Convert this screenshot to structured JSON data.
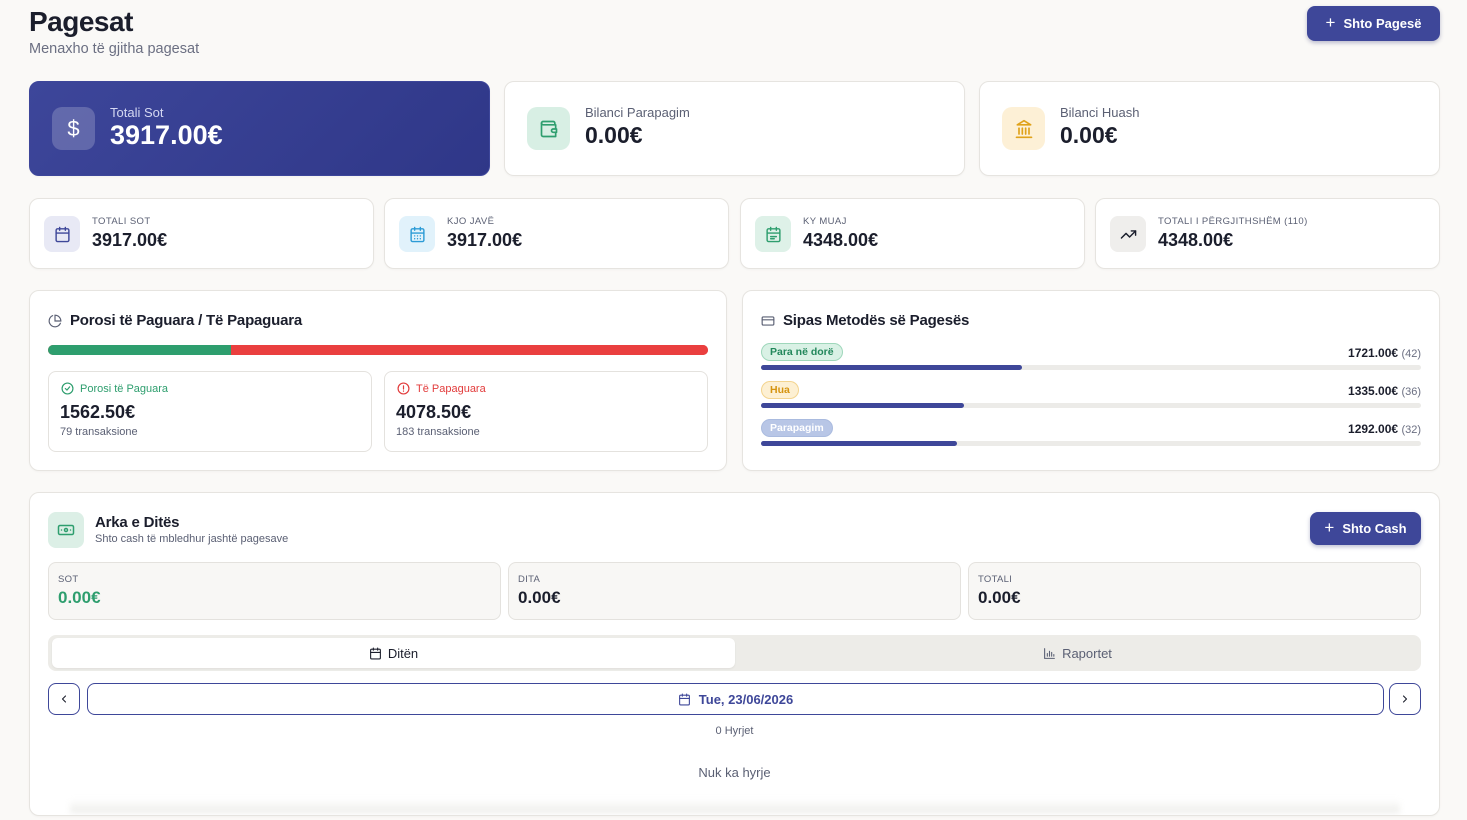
{
  "header": {
    "title": "Pagesat",
    "subtitle": "Menaxho të gjitha pagesat",
    "add_payment_label": "Shto Pagesë"
  },
  "top_cards": [
    {
      "label": "Totali Sot",
      "value": "3917.00€",
      "icon": "dollar-icon"
    },
    {
      "label": "Bilanci Parapagim",
      "value": "0.00€",
      "icon": "wallet-icon"
    },
    {
      "label": "Bilanci Huash",
      "value": "0.00€",
      "icon": "bank-icon"
    }
  ],
  "stats": [
    {
      "label": "TOTALI SOT",
      "value": "3917.00€",
      "icon": "calendar-icon"
    },
    {
      "label": "KJO JAVË",
      "value": "3917.00€",
      "icon": "calendar-week-icon"
    },
    {
      "label": "KY MUAJ",
      "value": "4348.00€",
      "icon": "calendar-month-icon"
    },
    {
      "label": "TOTALI I PËRGJITHSHËM (110)",
      "value": "4348.00€",
      "icon": "trending-up-icon"
    }
  ],
  "orders": {
    "title": "Porosi të Paguara / Të Papaguara",
    "paid_fraction": 0.277,
    "paid": {
      "label": "Porosi të Paguara",
      "value": "1562.50€",
      "sub": "79 transaksione"
    },
    "unpaid": {
      "label": "Të Papaguara",
      "value": "4078.50€",
      "sub": "183 transaksione"
    }
  },
  "methods": {
    "title": "Sipas Metodës së Pagesës",
    "items": [
      {
        "label": "Para në dorë",
        "amount": "1721.00€",
        "count": "(42)",
        "fraction": 0.395
      },
      {
        "label": "Hua",
        "amount": "1335.00€",
        "count": "(36)",
        "fraction": 0.307
      },
      {
        "label": "Parapagim",
        "amount": "1292.00€",
        "count": "(32)",
        "fraction": 0.297
      }
    ]
  },
  "arka": {
    "title": "Arka e Ditës",
    "subtitle": "Shto cash të mbledhur jashtë pagesave",
    "add_cash_label": "Shto Cash",
    "boxes": [
      {
        "label": "SOT",
        "value": "0.00€"
      },
      {
        "label": "DITA",
        "value": "0.00€"
      },
      {
        "label": "TOTALI",
        "value": "0.00€"
      }
    ],
    "tabs": [
      "Ditën",
      "Raportet"
    ],
    "date": "Tue, 23/06/2026",
    "entries_count": "0 Hyrjet",
    "no_entries": "Nuk ka hyrje"
  },
  "colors": {
    "primary": "#3e4799",
    "paid": "#2e9e6e",
    "unpaid": "#ea3f3f"
  }
}
